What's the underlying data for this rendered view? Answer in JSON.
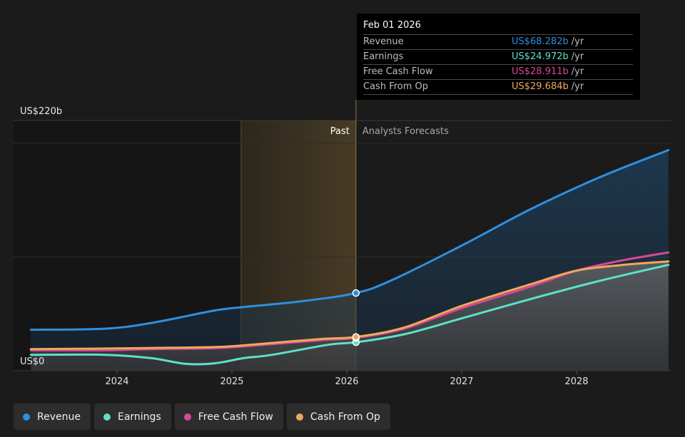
{
  "chart_data": {
    "type": "area",
    "x_axis": {
      "ticks": [
        "2024",
        "2025",
        "2026",
        "2027",
        "2028"
      ]
    },
    "y_axis": {
      "top_label": "US$220b",
      "bottom_label": "US$0",
      "ylim": [
        0,
        220
      ]
    },
    "regions": {
      "past_label": "Past",
      "forecast_label": "Analysts Forecasts"
    },
    "series": [
      {
        "name": "Revenue",
        "color": "#2f8fdf",
        "points": [
          [
            2023.25,
            36
          ],
          [
            2023.9,
            37
          ],
          [
            2024.3,
            42
          ],
          [
            2024.8,
            52
          ],
          [
            2025.0,
            55
          ],
          [
            2025.6,
            61
          ],
          [
            2026.08,
            68.3
          ],
          [
            2026.4,
            80
          ],
          [
            2027.0,
            110
          ],
          [
            2027.6,
            142
          ],
          [
            2028.2,
            170
          ],
          [
            2028.8,
            194
          ]
        ]
      },
      {
        "name": "Earnings",
        "color": "#5ee0c8",
        "points": [
          [
            2023.25,
            14
          ],
          [
            2023.9,
            14
          ],
          [
            2024.3,
            11
          ],
          [
            2024.6,
            6
          ],
          [
            2024.85,
            6.5
          ],
          [
            2025.1,
            11
          ],
          [
            2025.35,
            14
          ],
          [
            2025.85,
            23
          ],
          [
            2026.08,
            25
          ],
          [
            2026.5,
            32
          ],
          [
            2027.0,
            46
          ],
          [
            2027.6,
            63
          ],
          [
            2028.2,
            79
          ],
          [
            2028.8,
            93
          ]
        ]
      },
      {
        "name": "Free Cash Flow",
        "color": "#d9479a",
        "points": [
          [
            2023.25,
            18
          ],
          [
            2023.9,
            18
          ],
          [
            2024.3,
            19
          ],
          [
            2024.9,
            20
          ],
          [
            2025.3,
            23
          ],
          [
            2025.8,
            27
          ],
          [
            2026.08,
            28.9
          ],
          [
            2026.5,
            37
          ],
          [
            2027.0,
            55
          ],
          [
            2027.6,
            74
          ],
          [
            2028.0,
            88
          ],
          [
            2028.4,
            97
          ],
          [
            2028.8,
            104
          ]
        ]
      },
      {
        "name": "Cash From Op",
        "color": "#efa85a",
        "points": [
          [
            2023.25,
            19
          ],
          [
            2023.9,
            19.5
          ],
          [
            2024.3,
            20
          ],
          [
            2024.9,
            21
          ],
          [
            2025.3,
            24
          ],
          [
            2025.8,
            28
          ],
          [
            2026.08,
            29.7
          ],
          [
            2026.5,
            38
          ],
          [
            2027.0,
            57
          ],
          [
            2027.6,
            76
          ],
          [
            2028.0,
            88
          ],
          [
            2028.4,
            93
          ],
          [
            2028.8,
            96
          ]
        ]
      }
    ],
    "tooltip": {
      "date": "Feb 01 2026",
      "unit": "/yr",
      "rows": [
        {
          "name": "Revenue",
          "value": "US$68.282b",
          "color": "#2f8fdf"
        },
        {
          "name": "Earnings",
          "value": "US$24.972b",
          "color": "#5ee0c8"
        },
        {
          "name": "Free Cash Flow",
          "value": "US$28.911b",
          "color": "#d9479a"
        },
        {
          "name": "Cash From Op",
          "value": "US$29.684b",
          "color": "#efa85a"
        }
      ]
    },
    "highlight_x": 2026.08,
    "past_band_start": 2025.08
  },
  "legend": [
    {
      "label": "Revenue",
      "color": "#2f8fdf"
    },
    {
      "label": "Earnings",
      "color": "#5ee0c8"
    },
    {
      "label": "Free Cash Flow",
      "color": "#d9479a"
    },
    {
      "label": "Cash From Op",
      "color": "#efa85a"
    }
  ]
}
